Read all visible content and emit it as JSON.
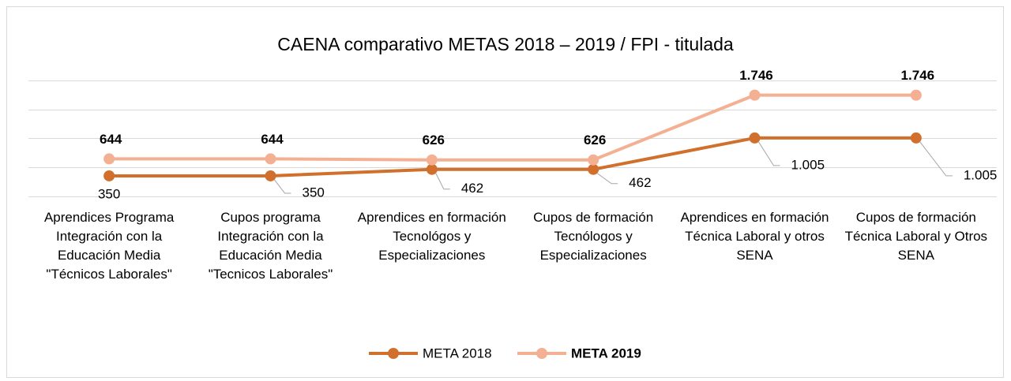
{
  "chart_data": {
    "type": "line",
    "title": "CAENA comparativo METAS 2018 – 2019 / FPI - titulada",
    "categories": [
      "Aprendices Programa Integración con la Educación Media \"Técnicos Laborales\"",
      "Cupos programa Integración con la Educación Media \"Tecnicos Laborales\"",
      "Aprendices en formación Tecnológos y Especializaciones",
      "Cupos de formación Tecnólogos y Especializaciones",
      "Aprendices en formación Técnica Laboral y otros SENA",
      "Cupos de formación Técnica Laboral y Otros SENA"
    ],
    "series": [
      {
        "name": "META 2018",
        "color": "#d0702c",
        "values": [
          350,
          350,
          462,
          462,
          1005,
          1005
        ],
        "value_labels": [
          "350",
          "350",
          "462",
          "462",
          "1.005",
          "1.005"
        ]
      },
      {
        "name": "META 2019",
        "color": "#f4b092",
        "values": [
          644,
          644,
          626,
          626,
          1746,
          1746
        ],
        "value_labels": [
          "644",
          "644",
          "626",
          "626",
          "1.746",
          "1.746"
        ]
      }
    ],
    "ylim": [
      0,
      2000
    ],
    "yticks": [
      0,
      500,
      1000,
      1500,
      2000
    ],
    "grid": true
  }
}
